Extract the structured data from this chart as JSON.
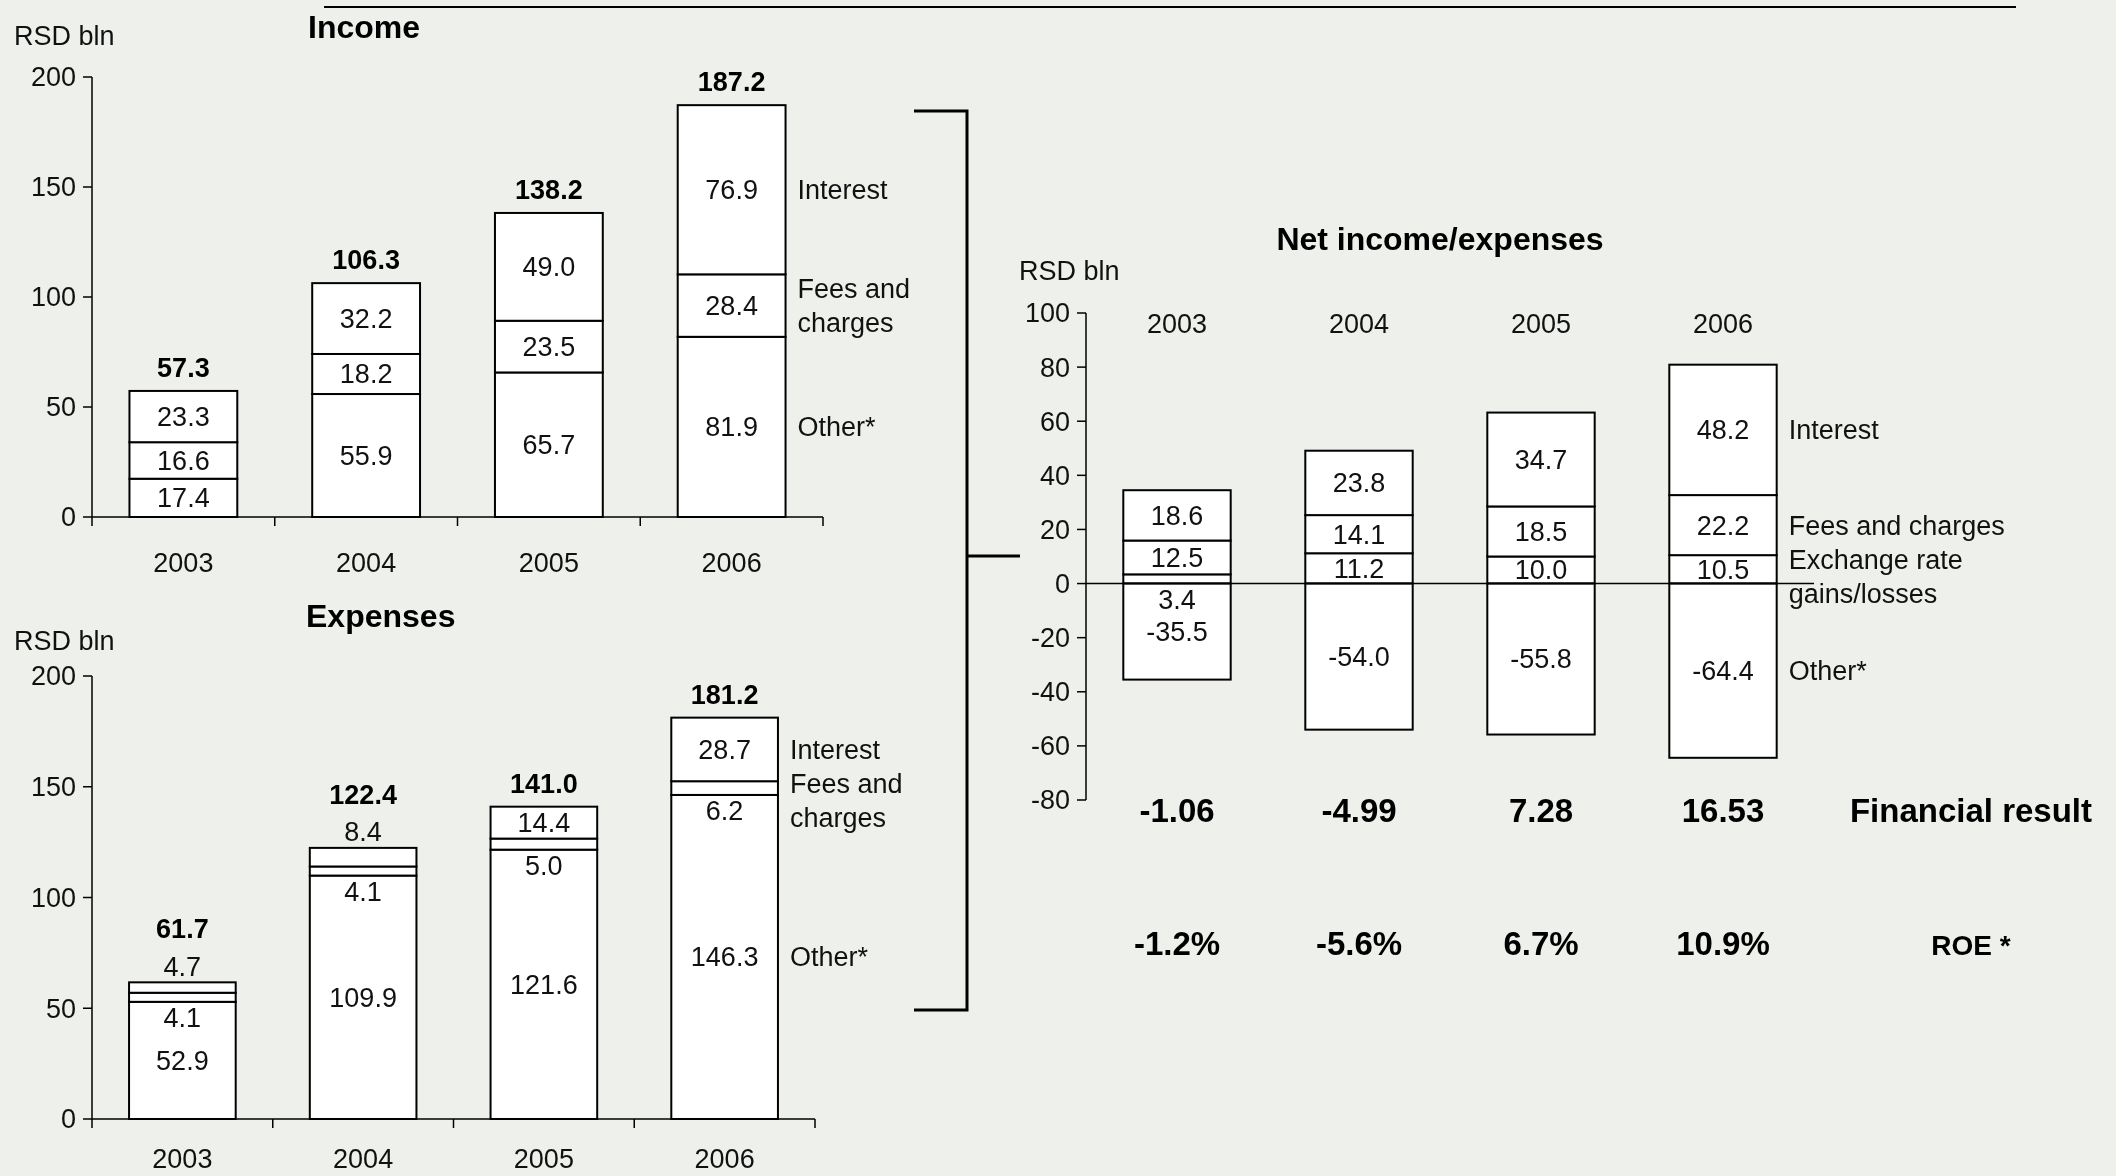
{
  "chart_data": [
    {
      "type": "bar",
      "title": "Income",
      "ylabel": "RSD bln",
      "categories": [
        "2003",
        "2004",
        "2005",
        "2006"
      ],
      "stacked": true,
      "ylim": [
        0,
        200
      ],
      "yticks": [
        0,
        50,
        100,
        150,
        200
      ],
      "totals": [
        "57.3",
        "106.3",
        "138.2",
        "187.2"
      ],
      "series": [
        {
          "name": "Other*",
          "color": "#ffffff",
          "values": [
            17.4,
            55.9,
            65.7,
            81.9
          ],
          "value_labels": [
            "17.4",
            "55.9",
            "65.7",
            "81.9"
          ]
        },
        {
          "name": "Fees and charges",
          "color": "#ffffff",
          "values": [
            16.6,
            18.2,
            23.5,
            28.4
          ],
          "value_labels": [
            "16.6",
            "18.2",
            "23.5",
            "28.4"
          ]
        },
        {
          "name": "Interest",
          "color": "#ffffff",
          "values": [
            23.3,
            32.2,
            49.0,
            76.9
          ],
          "value_labels": [
            "23.3",
            "32.2",
            "49.0",
            "76.9"
          ]
        }
      ]
    },
    {
      "type": "bar",
      "title": "Expenses",
      "ylabel": "RSD bln",
      "categories": [
        "2003",
        "2004",
        "2005",
        "2006"
      ],
      "stacked": true,
      "ylim": [
        0,
        200
      ],
      "yticks": [
        0,
        50,
        100,
        150,
        200
      ],
      "totals": [
        "61.7",
        "122.4",
        "141.0",
        "181.2"
      ],
      "series": [
        {
          "name": "Other*",
          "color": "#ffffff",
          "values": [
            52.9,
            109.9,
            121.6,
            146.3
          ],
          "value_labels": [
            "52.9",
            "109.9",
            "121.6",
            "146.3"
          ]
        },
        {
          "name": "Fees and charges",
          "color": "#ffffff",
          "values": [
            4.1,
            4.1,
            5.0,
            6.2
          ],
          "value_labels": [
            "4.1",
            "4.1",
            "5.0",
            "6.2"
          ]
        },
        {
          "name": "Interest",
          "color": "#ffffff",
          "values": [
            4.7,
            8.4,
            14.4,
            28.7
          ],
          "value_labels": [
            "4.7",
            "8.4",
            "14.4",
            "28.7"
          ]
        }
      ]
    },
    {
      "type": "bar",
      "title": "Net income/expenses",
      "ylabel": "RSD bln",
      "categories": [
        "2003",
        "2004",
        "2005",
        "2006"
      ],
      "stacked": true,
      "ylim": [
        -80,
        100
      ],
      "yticks": [
        -80,
        -60,
        -40,
        -20,
        0,
        20,
        40,
        60,
        80,
        100
      ],
      "series": [
        {
          "name": "Exchange rate gains/losses",
          "color": "#ffffff",
          "values": [
            3.4,
            11.2,
            10.0,
            10.5
          ],
          "value_labels": [
            "3.4",
            "11.2",
            "10.0",
            "10.5"
          ]
        },
        {
          "name": "Fees and charges",
          "color": "#ffffff",
          "values": [
            12.5,
            14.1,
            18.5,
            22.2
          ],
          "value_labels": [
            "12.5",
            "14.1",
            "18.5",
            "22.2"
          ]
        },
        {
          "name": "Interest",
          "color": "#ffffff",
          "values": [
            18.6,
            23.8,
            34.7,
            48.2
          ],
          "value_labels": [
            "18.6",
            "23.8",
            "34.7",
            "48.2"
          ]
        },
        {
          "name": "Other*",
          "color": "#ffffff",
          "values": [
            -35.5,
            -54.0,
            -55.8,
            -64.4
          ],
          "value_labels": [
            "-35.5",
            "-54.0",
            "-55.8",
            "-64.4"
          ]
        }
      ],
      "annotations": [
        "-1.06",
        "-4.99",
        "7.28",
        "16.53",
        "Financial result",
        "-1.2%",
        "-5.6%",
        "6.7%",
        "10.9%",
        "ROE *"
      ]
    }
  ]
}
